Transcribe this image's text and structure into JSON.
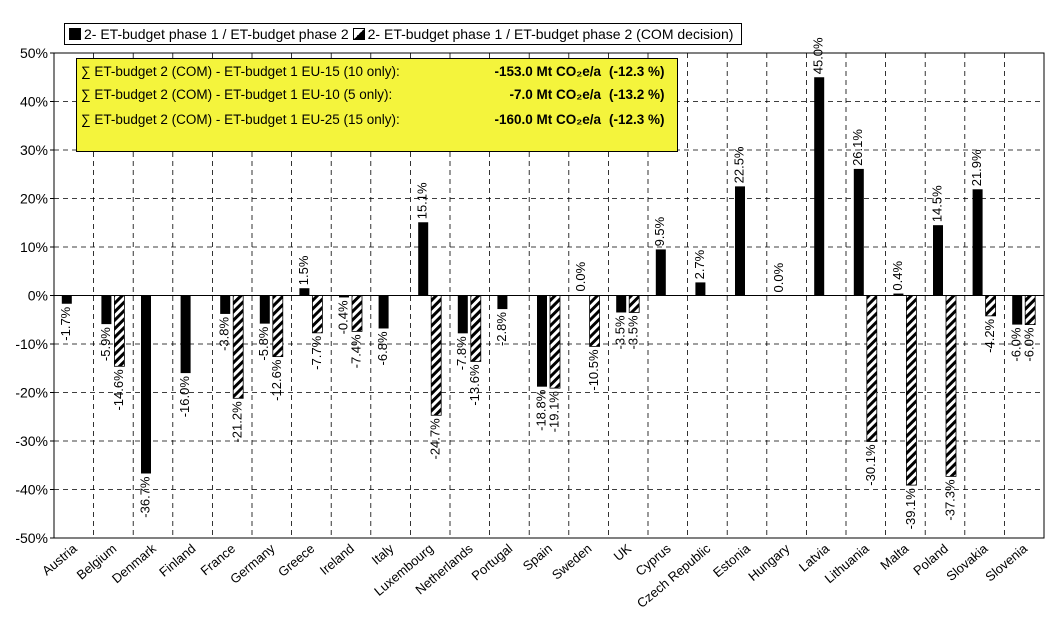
{
  "chart_data": {
    "type": "bar",
    "categories": [
      "Austria",
      "Belgium",
      "Denmark",
      "Finland",
      "France",
      "Germany",
      "Greece",
      "Ireland",
      "Italy",
      "Luxembourg",
      "Netherlands",
      "Portugal",
      "Spain",
      "Sweden",
      "UK",
      "Cyprus",
      "Czech Republic",
      "Estonia",
      "Hungary",
      "Latvia",
      "Lithuania",
      "Malta",
      "Poland",
      "Slovakia",
      "Slovenia"
    ],
    "series": [
      {
        "name": "2- ET-budget phase 1 / ET-budget phase 2",
        "fill": "solid",
        "values": [
          -1.7,
          -5.9,
          -36.7,
          -16.0,
          -3.8,
          -5.8,
          1.5,
          -0.4,
          -6.8,
          15.1,
          -7.8,
          -2.8,
          -18.8,
          null,
          -3.5,
          9.5,
          2.7,
          22.5,
          null,
          45.0,
          26.1,
          0.4,
          14.5,
          21.9,
          -6.0
        ],
        "labels": [
          "-1.7%",
          "-5.9%",
          "-36.7%",
          "-16.0%",
          "-3.8%",
          "-5.8%",
          "1.5%",
          "-0.4%",
          "-6.8%",
          "15.1%",
          "-7.8%",
          "-2.8%",
          "-18.8%",
          "",
          "-3.5%",
          "9.5%",
          "2.7%",
          "22.5%",
          "0.0%",
          "45.0%",
          "26.1%",
          "0.4%",
          "14.5%",
          "21.9%",
          "-6.0%"
        ]
      },
      {
        "name": "2- ET-budget phase 1 / ET-budget phase 2 (COM decision)",
        "fill": "hatched",
        "values": [
          null,
          -14.6,
          null,
          null,
          -21.2,
          -12.6,
          -7.7,
          -7.4,
          null,
          -24.7,
          -13.6,
          null,
          -19.1,
          -10.5,
          -3.5,
          null,
          null,
          null,
          null,
          null,
          -30.1,
          -39.1,
          -37.3,
          -4.2,
          -6.0
        ],
        "labels": [
          "",
          "-14.6%",
          "",
          "",
          "-21.2%",
          "-12.6%",
          "-7.7%",
          "-7.4%",
          "",
          "-24.7%",
          "-13.6%",
          "",
          "-19.1%",
          "0.0%|-10.5%",
          "-3.5%",
          "",
          "",
          "",
          "",
          "",
          "-30.1%",
          "-39.1%",
          "-37.3%",
          "-4.2%",
          "-6.0%"
        ]
      }
    ],
    "y_ticks": [
      "50%",
      "40%",
      "30%",
      "20%",
      "10%",
      "0%",
      "-10%",
      "-20%",
      "-30%",
      "-40%",
      "-50%"
    ],
    "ylim": [
      -50,
      50
    ],
    "grid": "dashed vertical and horizontal",
    "legend_position": "top",
    "colors": {
      "solid": "#000000",
      "hatched": "#000000",
      "annotation_bg": "#f4f43c"
    }
  },
  "legend": {
    "entries": [
      "2- ET-budget phase 1 / ET-budget phase 2",
      "2- ET-budget phase 1 / ET-budget phase 2 (COM decision)"
    ]
  },
  "annotation": {
    "rows": [
      {
        "label": "∑ ET-budget 2 (COM) - ET-budget 1 EU-15 (10 only):",
        "value": "-153.0 Mt CO₂e/a",
        "pct": "(-12.3 %)"
      },
      {
        "label": "∑ ET-budget 2 (COM) - ET-budget 1 EU-10 (5 only):",
        "value": "-7.0 Mt CO₂e/a",
        "pct": "(-13.2 %)"
      },
      {
        "label": "∑ ET-budget 2 (COM) - ET-budget 1 EU-25 (15 only):",
        "value": "-160.0 Mt CO₂e/a",
        "pct": "(-12.3 %)"
      }
    ]
  }
}
